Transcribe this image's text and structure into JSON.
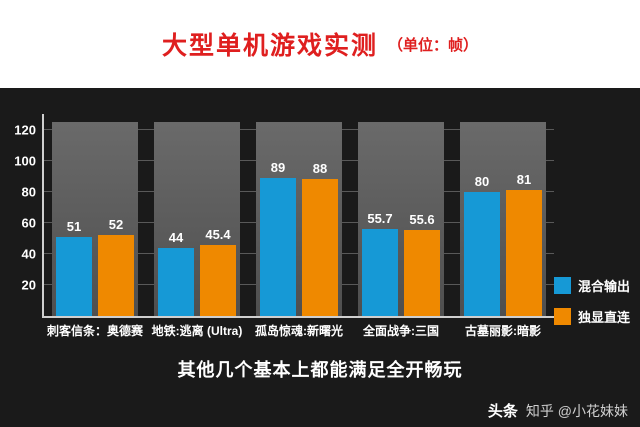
{
  "header": {
    "title": "大型单机游戏实测",
    "unit": "（单位：帧）"
  },
  "chart_data": {
    "type": "bar",
    "title": "大型单机游戏实测（单位：帧）",
    "categories": [
      "刺客信条：奥德赛",
      "地铁:逃离 (Ultra)",
      "孤岛惊魂:新曙光",
      "全面战争:三国",
      "古墓丽影:暗影"
    ],
    "series": [
      {
        "name": "混合输出",
        "color": "#1699d6",
        "values": [
          51,
          44,
          89,
          55.7,
          80
        ]
      },
      {
        "name": "独显直连",
        "color": "#ef8900",
        "values": [
          52,
          45.4,
          88,
          55.6,
          81
        ]
      }
    ],
    "yticks": [
      120,
      100,
      80,
      60,
      40,
      20
    ],
    "ylim": [
      0,
      130
    ],
    "track_max": 125,
    "grid": true,
    "legend_position": "right",
    "xlabel": "",
    "ylabel": ""
  },
  "legend": {
    "items": [
      {
        "label": "混合输出",
        "color": "#1699d6"
      },
      {
        "label": "独显直连",
        "color": "#ef8900"
      }
    ]
  },
  "caption": "其他几个基本上都能满足全开畅玩",
  "watermark": {
    "site": "头条",
    "account": "知乎 @小花妹妹"
  },
  "colors": {
    "title_red": "#df1f1f",
    "background": "#1a1a1a",
    "track": "#5c5c5c",
    "blue": "#1699d6",
    "orange": "#ef8900"
  }
}
